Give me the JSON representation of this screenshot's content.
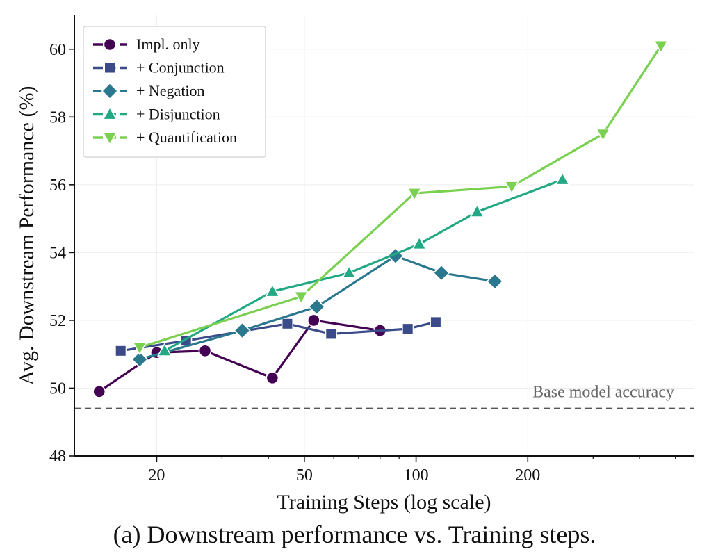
{
  "chart_data": {
    "type": "line",
    "xlabel": "Training Steps (log scale)",
    "ylabel": "Avg. Downstream Performance (%)",
    "x_scale": "log",
    "xlim": [
      12,
      560
    ],
    "ylim": [
      48,
      61
    ],
    "x_ticks": [
      20,
      50,
      100,
      200
    ],
    "x_tick_labels": [
      "20",
      "50",
      "100",
      "200"
    ],
    "y_ticks": [
      48,
      50,
      52,
      54,
      56,
      58,
      60
    ],
    "y_tick_labels": [
      "48",
      "50",
      "52",
      "54",
      "56",
      "58",
      "60"
    ],
    "grid": true,
    "legend_position": "top-left",
    "baseline": {
      "label": "Base model accuracy",
      "value": 49.4,
      "color": "#555555"
    },
    "series": [
      {
        "name": "Impl. only",
        "color": "#440154",
        "marker": "circle",
        "x": [
          14,
          20,
          27,
          41,
          53,
          80
        ],
        "y": [
          49.9,
          51.05,
          51.1,
          50.3,
          52.0,
          51.7
        ]
      },
      {
        "name": "+ Conjunction",
        "color": "#3b4b8a",
        "marker": "square",
        "x": [
          16,
          24,
          45,
          59,
          95,
          113
        ],
        "y": [
          51.1,
          51.4,
          51.9,
          51.6,
          51.75,
          51.95
        ]
      },
      {
        "name": "+ Negation",
        "color": "#2a788e",
        "marker": "diamond",
        "x": [
          18,
          34,
          54,
          88,
          117,
          163
        ],
        "y": [
          50.85,
          51.7,
          52.4,
          53.9,
          53.4,
          53.15
        ]
      },
      {
        "name": "+ Disjunction",
        "color": "#22a884",
        "marker": "triangle-up",
        "x": [
          21,
          41,
          66,
          102,
          146,
          248
        ],
        "y": [
          51.1,
          52.85,
          53.4,
          54.25,
          55.2,
          56.15
        ]
      },
      {
        "name": "+ Quantification",
        "color": "#7ad151",
        "marker": "triangle-down",
        "x": [
          18,
          49,
          99,
          181,
          319,
          457
        ],
        "y": [
          51.2,
          52.7,
          55.75,
          55.95,
          57.5,
          60.1
        ]
      }
    ]
  },
  "caption": "(a) Downstream performance vs. Training steps."
}
